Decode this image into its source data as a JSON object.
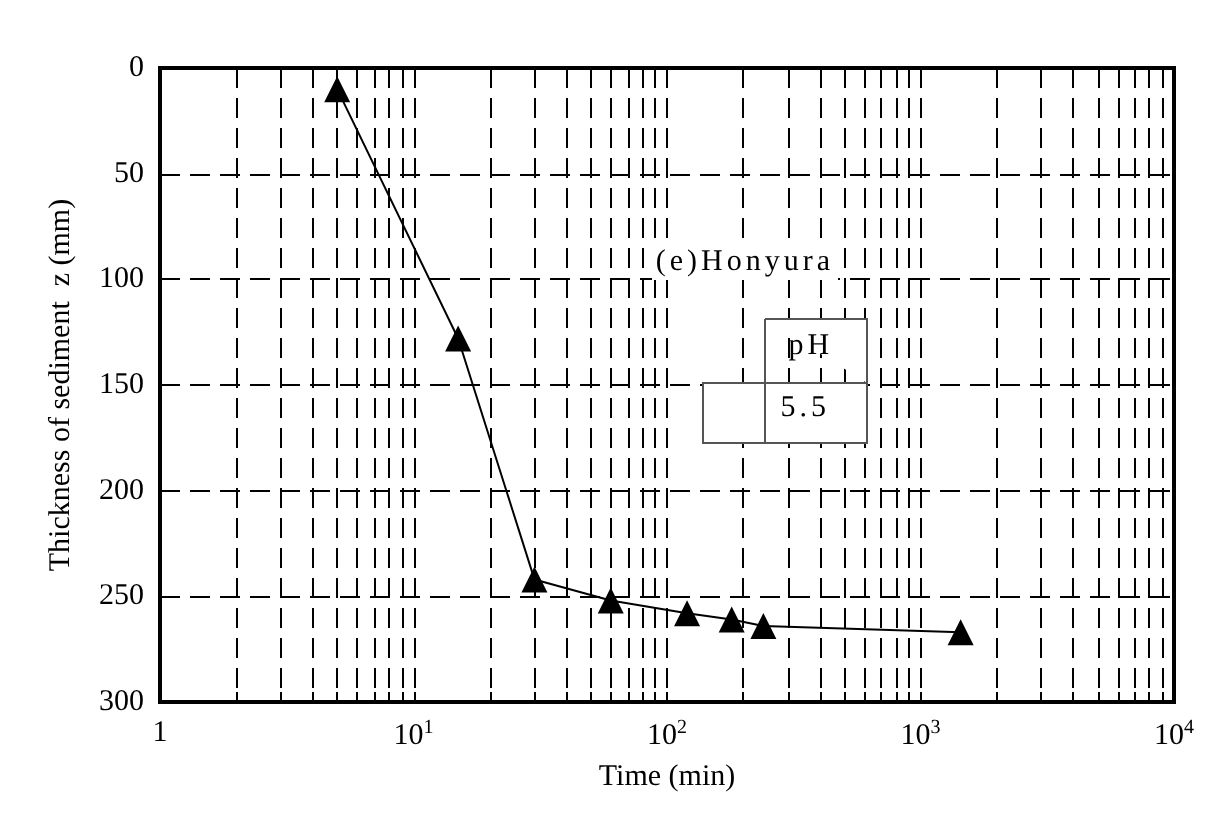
{
  "chart_data": {
    "type": "line",
    "xlabel": "Time (min)",
    "ylabel": "Thickness of sediment  z (mm)",
    "x": [
      5,
      15,
      30,
      60,
      120,
      180,
      240,
      1440
    ],
    "series": [
      {
        "color": "#000000",
        "values": [
          10,
          128,
          242,
          252,
          258,
          261,
          264,
          267
        ]
      }
    ],
    "log": "x",
    "xlim": [
      1,
      10000
    ],
    "ylim": [
      300,
      0
    ],
    "xticks": [
      1,
      {
        "value": 10,
        "label": "10$^{1}$"
      },
      {
        "value": 100,
        "label": "10$^{2}$"
      },
      {
        "value": 1000,
        "label": "10$^{3}$"
      },
      {
        "value": 10000,
        "label": "10$^{4}$"
      }
    ],
    "yticks": [
      0,
      50,
      100,
      150,
      200,
      250,
      300
    ],
    "grid": true,
    "marker": "triangle",
    "line_style": "solid",
    "annotations": [
      "(e)Honyura",
      "pH",
      "5.5"
    ]
  }
}
